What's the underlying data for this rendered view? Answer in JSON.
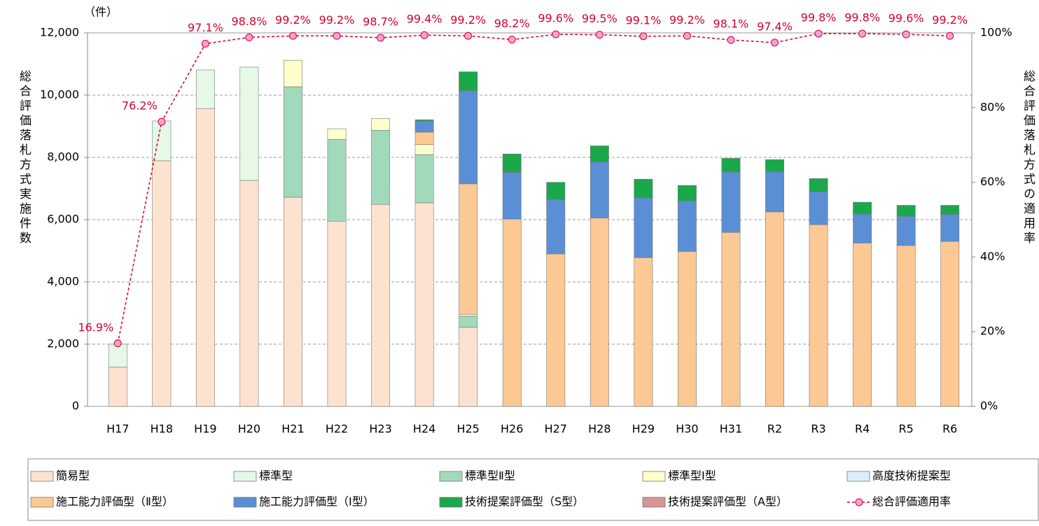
{
  "chart_data": {
    "type": "bar",
    "unit_label": "（件）",
    "y_label": "総合評価落札方式実施件数",
    "y2_label": "総合評価落札方式の適用率",
    "categories": [
      "H17",
      "H18",
      "H19",
      "H20",
      "H21",
      "H22",
      "H23",
      "H24",
      "H25",
      "H26",
      "H27",
      "H28",
      "H29",
      "H30",
      "H31",
      "R2",
      "R3",
      "R4",
      "R5",
      "R6"
    ],
    "ylim": [
      0,
      12000
    ],
    "yticks": [
      0,
      {
        "value": 2000,
        "label": "2,000"
      },
      {
        "value": 4000,
        "label": "4,000"
      },
      {
        "value": 6000,
        "label": "6,000"
      },
      {
        "value": 8000,
        "label": "8,000"
      },
      {
        "value": 10000,
        "label": "10,000"
      },
      {
        "value": 12000,
        "label": "12,000"
      }
    ],
    "y2lim": [
      0,
      100
    ],
    "y2ticks": [
      {
        "value": 0,
        "label": "0%"
      },
      {
        "value": 20,
        "label": "20%"
      },
      {
        "value": 40,
        "label": "40%"
      },
      {
        "value": 60,
        "label": "60%"
      },
      {
        "value": 80,
        "label": "80%"
      },
      {
        "value": 100,
        "label": "100%"
      }
    ],
    "grid": true,
    "series": [
      {
        "name": "簡易型",
        "color": "#fde3cf",
        "values": [
          1260,
          7890,
          9570,
          7260,
          6720,
          5950,
          6490,
          6540,
          2540,
          null,
          null,
          null,
          null,
          null,
          null,
          null,
          null,
          null,
          null,
          null
        ]
      },
      {
        "name": "標準型",
        "color": "#e6f8e6",
        "values": [
          740,
          1280,
          1240,
          3640,
          null,
          null,
          null,
          null,
          null,
          null,
          null,
          null,
          null,
          null,
          null,
          null,
          null,
          null,
          null,
          null
        ]
      },
      {
        "name": "標準型Ⅱ型",
        "color": "#a3d9bb",
        "values": [
          null,
          null,
          null,
          null,
          3550,
          2630,
          2380,
          1550,
          360,
          null,
          null,
          null,
          null,
          null,
          null,
          null,
          null,
          null,
          null,
          null
        ]
      },
      {
        "name": "標準型Ⅰ型",
        "color": "#ffffcc",
        "values": [
          null,
          null,
          null,
          null,
          850,
          340,
          380,
          320,
          60,
          null,
          null,
          null,
          null,
          null,
          null,
          null,
          null,
          null,
          null,
          null
        ]
      },
      {
        "name": "高度技術提案型",
        "color": "#dbeef8",
        "values": [
          null,
          null,
          null,
          null,
          null,
          null,
          null,
          null,
          null,
          null,
          null,
          null,
          null,
          null,
          null,
          null,
          null,
          null,
          null,
          null
        ]
      },
      {
        "name": "施工能力評価型（Ⅱ型）",
        "color": "#fcc893",
        "values": [
          null,
          null,
          null,
          null,
          null,
          null,
          null,
          400,
          4190,
          6020,
          4900,
          6050,
          4780,
          4980,
          5590,
          6250,
          5840,
          5250,
          5170,
          5300
        ]
      },
      {
        "name": "施工能力評価型（Ⅰ型）",
        "color": "#5a8fd6",
        "values": [
          null,
          null,
          null,
          null,
          null,
          null,
          null,
          360,
          2990,
          1500,
          1750,
          1800,
          1920,
          1620,
          1940,
          1290,
          1060,
          930,
          940,
          870
        ]
      },
      {
        "name": "技術提案評価型（S型）",
        "color": "#1aa84a",
        "values": [
          null,
          null,
          null,
          null,
          null,
          null,
          null,
          40,
          610,
          590,
          550,
          520,
          600,
          500,
          440,
          390,
          420,
          380,
          350,
          290
        ]
      },
      {
        "name": "技術提案評価型（A型）",
        "color": "#d99494",
        "values": [
          null,
          null,
          null,
          null,
          null,
          null,
          null,
          null,
          null,
          null,
          null,
          null,
          null,
          null,
          null,
          null,
          null,
          null,
          null,
          null
        ]
      },
      {
        "name": "総合評価適用率",
        "color": "#d6002a",
        "type": "line",
        "axis": "y2",
        "values": [
          16.9,
          76.2,
          97.1,
          98.8,
          99.2,
          99.2,
          98.7,
          99.4,
          99.2,
          98.2,
          99.6,
          99.5,
          99.1,
          99.2,
          98.1,
          97.4,
          99.8,
          99.8,
          99.6,
          99.2
        ],
        "value_labels": [
          "16.9%",
          "76.2%",
          "97.1%",
          "98.8%",
          "99.2%",
          "99.2%",
          "98.7%",
          "99.4%",
          "99.2%",
          "98.2%",
          "99.6%",
          "99.5%",
          "99.1%",
          "99.2%",
          "98.1%",
          "97.4%",
          "99.8%",
          "99.8%",
          "99.6%",
          "99.2%"
        ]
      }
    ]
  }
}
